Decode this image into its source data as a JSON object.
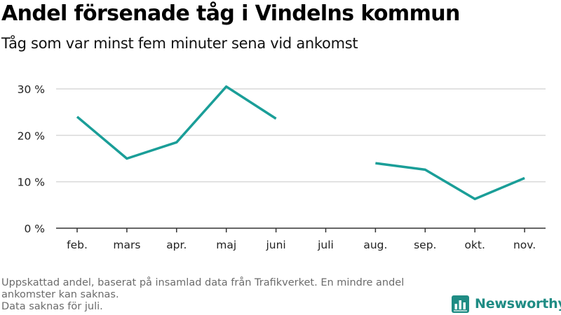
{
  "header": {
    "title": "Andel försenade tåg i Vindelns kommun",
    "subtitle": "Tåg som var minst fem minuter sena vid ankomst"
  },
  "footer": {
    "note_lines": [
      "Uppskattad andel, baserat på insamlad data från Trafikverket. En mindre andel",
      "ankomster kan saknas.",
      "Data saknas för juli."
    ],
    "brand": "Newsworthy"
  },
  "colors": {
    "line": "#1a9e98",
    "grid": "#d9d9d9",
    "axis": "#333333",
    "brand": "#1f8c84"
  },
  "chart_data": {
    "type": "line",
    "categories": [
      "feb.",
      "mars",
      "apr.",
      "maj",
      "juni",
      "juli",
      "aug.",
      "sep.",
      "okt.",
      "nov."
    ],
    "series": [
      {
        "values": [
          24.0,
          15.0,
          18.5,
          30.5,
          23.6,
          null,
          14.0,
          12.6,
          6.3,
          10.8
        ]
      }
    ],
    "ylim": [
      0,
      30
    ],
    "yticks": [
      0,
      10,
      20,
      30
    ],
    "ytick_labels": [
      "0 %",
      "10 %",
      "20 %",
      "30 %"
    ],
    "grid": true,
    "xlabel": "",
    "ylabel": ""
  }
}
